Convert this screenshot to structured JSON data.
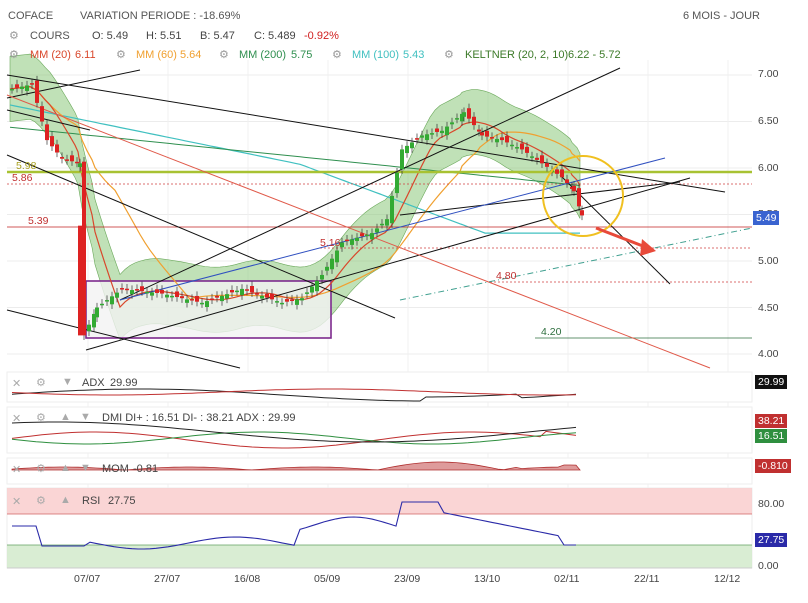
{
  "header": {
    "symbol": "COFACE",
    "variation": "VARIATION PERIODE : -18.69%",
    "period": "6 MOIS - JOUR"
  },
  "legend": {
    "cours": "COURS",
    "o": "O: 5.49",
    "h": "H: 5.51",
    "b": "B: 5.47",
    "c": "C: 5.489",
    "c_change": "-0.92%",
    "mm20": "MM (20)",
    "mm20_val": "6.11",
    "mm60": "MM (60)",
    "mm60_val": "5.64",
    "mm200": "MM (200)",
    "mm200_val": "5.75",
    "mm100": "MM (100)",
    "mm100_val": "5.43",
    "keltner": "KELTNER (20, 2, 10)",
    "keltner_val": "6.22 - 5.72"
  },
  "colors": {
    "up": "#33aa33",
    "down": "#dd2222",
    "mm20": "#d9472b",
    "mm60": "#f0a030",
    "mm200": "#2f8f4f",
    "mm100": "#40c0c0",
    "keltner_fill": "#8cc87c",
    "support": "#a8c232",
    "accent": "#3070e0",
    "circle": "#f0c020"
  },
  "price_axis": {
    "ticks": [
      "7.00",
      "6.50",
      "6.00",
      "5.50",
      "5.00",
      "4.50",
      "4.00"
    ],
    "current_tag": "5.49"
  },
  "annotations": {
    "lvl_598": "5.98",
    "lvl_586": "5.86",
    "lvl_539": "5.39",
    "lvl_516": "5.16",
    "lvl_480": "4.80",
    "lvl_420": "4.20"
  },
  "x_axis": {
    "labels": [
      "07/07",
      "27/07",
      "16/08",
      "05/09",
      "23/09",
      "13/10",
      "02/11",
      "22/11",
      "12/12"
    ]
  },
  "indicators": {
    "adx": {
      "label": "ADX",
      "value": "29.99",
      "tag": "29.99"
    },
    "dmi": {
      "label": "DMI DI+ : 16.51 DI- : 38.21 ADX : 29.99",
      "tag_minus": "38.21",
      "tag_plus": "16.51"
    },
    "mom": {
      "label": "MOM",
      "value": "-0.81",
      "tag": "-0.810"
    },
    "rsi": {
      "label": "RSI",
      "value": "27.75",
      "tag": "27.75",
      "ticks": [
        "80.00",
        "0.00"
      ]
    }
  },
  "chart_data": {
    "type": "candlestick",
    "title": "COFACE",
    "ylim": [
      3.9,
      7.3
    ],
    "x": [
      "07/07",
      "27/07",
      "16/08",
      "05/09",
      "23/09",
      "13/10",
      "02/11",
      "22/11",
      "12/12"
    ],
    "ohlc_close_approx": [
      6.85,
      6.1,
      4.2,
      4.7,
      4.65,
      4.5,
      4.8,
      5.4,
      6.3,
      6.55,
      6.2,
      5.95,
      5.49
    ],
    "moving_averages": {
      "MM (20)": 6.11,
      "MM (60)": 5.64,
      "MM (200)": 5.75,
      "MM (100)": 5.43
    },
    "keltner": [
      6.22,
      5.72
    ],
    "levels": [
      5.98,
      5.86,
      5.39,
      5.16,
      4.8,
      4.2
    ],
    "last": {
      "open": 5.49,
      "high": 5.51,
      "low": 5.47,
      "close": 5.489,
      "change_pct": -0.92
    }
  }
}
